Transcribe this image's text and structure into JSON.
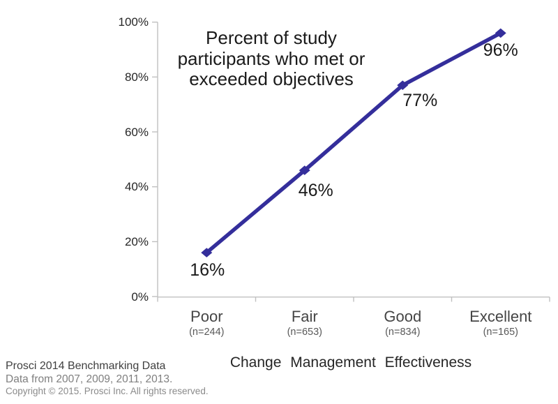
{
  "chart_data": {
    "type": "line",
    "title": "Percent of study participants who met or exceeded objectives",
    "title_lines": [
      "Percent of study",
      "participants who met or",
      "exceeded objectives"
    ],
    "categories": [
      "Poor",
      "Fair",
      "Good",
      "Excellent"
    ],
    "category_sublabels": [
      "(n=244)",
      "(n=653)",
      "(n=834)",
      "(n=165)"
    ],
    "values": [
      16,
      46,
      77,
      96
    ],
    "value_labels": [
      "16%",
      "46%",
      "77%",
      "96%"
    ],
    "xlabel": "Change Management Effectiveness",
    "y_ticks": [
      "0%",
      "20%",
      "40%",
      "60%",
      "80%",
      "100%"
    ],
    "ylim": [
      0,
      100
    ],
    "grid": false,
    "legend": "none",
    "line_color": "#342e9b",
    "marker": "diamond",
    "axis_color": "#c0c0c0"
  },
  "footer": {
    "line1": "Prosci 2014 Benchmarking Data",
    "line2": "Data from 2007, 2009, 2011, 2013.",
    "line3": "Copyright © 2015. Prosci Inc. All rights reserved."
  }
}
